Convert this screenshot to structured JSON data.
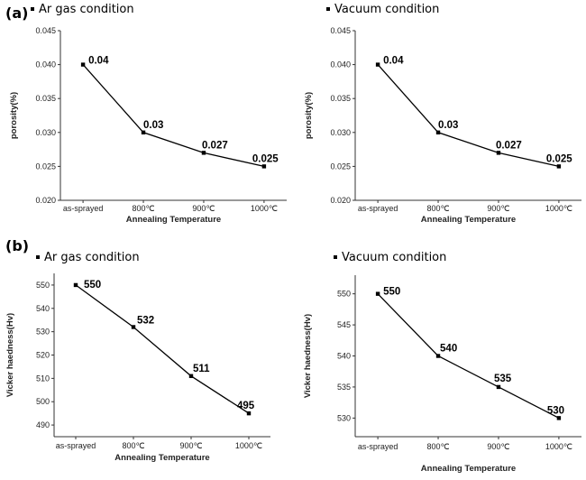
{
  "panel_labels": [
    "(a)",
    "(b)"
  ],
  "chart_data": [
    {
      "type": "line",
      "panel": "(a)",
      "legend": "Ar  gas condition",
      "xlabel": "Annealing Temperature",
      "ylabel": "porosity(%)",
      "categories": [
        "as-sprayed",
        "800℃",
        "900℃",
        "1000℃"
      ],
      "values": [
        0.04,
        0.03,
        0.027,
        0.025
      ],
      "data_labels": [
        "0.04",
        "0.03",
        "0.027",
        "0.025"
      ],
      "ylim": [
        0.02,
        0.045
      ],
      "yticks": [
        0.02,
        0.025,
        0.03,
        0.035,
        0.04,
        0.045
      ],
      "ytick_labels": [
        "0.020",
        "0.025",
        "0.030",
        "0.035",
        "0.040",
        "0.045"
      ]
    },
    {
      "type": "line",
      "panel": "(a)",
      "legend": "Vacuum  condition",
      "xlabel": "Annealing Temperature",
      "ylabel": "porosity(%)",
      "categories": [
        "as-sprayed",
        "800℃",
        "900℃",
        "1000℃"
      ],
      "values": [
        0.04,
        0.03,
        0.027,
        0.025
      ],
      "data_labels": [
        "0.04",
        "0.03",
        "0.027",
        "0.025"
      ],
      "ylim": [
        0.02,
        0.045
      ],
      "yticks": [
        0.02,
        0.025,
        0.03,
        0.035,
        0.04,
        0.045
      ],
      "ytick_labels": [
        "0.020",
        "0.025",
        "0.030",
        "0.035",
        "0.040",
        "0.045"
      ]
    },
    {
      "type": "line",
      "panel": "(b)",
      "legend": "Ar  gas condition",
      "xlabel": "Annealing Temperature",
      "ylabel": "Vicker haedness(Hv)",
      "categories": [
        "as-sprayed",
        "800℃",
        "900℃",
        "1000℃"
      ],
      "values": [
        550,
        532,
        511,
        495
      ],
      "data_labels": [
        "550",
        "532",
        "511",
        "495"
      ],
      "ylim": [
        485,
        555
      ],
      "yticks": [
        490,
        500,
        510,
        520,
        530,
        540,
        550
      ],
      "ytick_labels": [
        "490",
        "500",
        "510",
        "520",
        "530",
        "540",
        "550"
      ]
    },
    {
      "type": "line",
      "panel": "(b)",
      "legend": "Vacuum  condition",
      "xlabel": "Annealing Temperature",
      "ylabel": "Vicker haedness(Hv)",
      "categories": [
        "as-sprayed",
        "800℃",
        "900℃",
        "1000℃"
      ],
      "values": [
        550,
        540,
        535,
        530
      ],
      "data_labels": [
        "550",
        "540",
        "535",
        "530"
      ],
      "ylim": [
        527,
        553
      ],
      "yticks": [
        530,
        535,
        540,
        545,
        550
      ],
      "ytick_labels": [
        "530",
        "535",
        "540",
        "545",
        "550"
      ]
    }
  ],
  "colors": {
    "line": "#000000",
    "axis": "#333333",
    "marker": "#000000"
  }
}
